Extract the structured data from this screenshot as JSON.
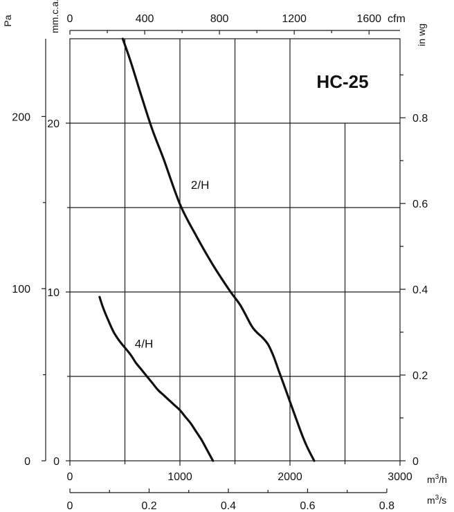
{
  "chart_data": {
    "type": "line",
    "title": "HC-25",
    "colors": {
      "curve": "#111111",
      "grid": "#1a1a1a",
      "background": "#ffffff"
    },
    "grid": true,
    "x_axes": {
      "bottom": {
        "unit": "m³/h",
        "range": [
          0,
          3000
        ],
        "ticks": [
          0,
          1000,
          2000,
          3000
        ],
        "labels": [
          "0",
          "1000",
          "2000",
          "3000"
        ]
      },
      "bottom2": {
        "unit": "m³/s",
        "range": [
          0,
          0.8333
        ],
        "ticks": [
          0,
          0.2,
          0.4,
          0.6,
          0.8
        ],
        "labels": [
          "0",
          "0.2",
          "0.4",
          "0.6",
          "0.8"
        ]
      },
      "top": {
        "unit": "cfm",
        "range": [
          0,
          1765.7
        ],
        "ticks": [
          0,
          400,
          800,
          1200,
          1600
        ],
        "labels": [
          "0",
          "400",
          "800",
          "1200",
          "1600"
        ]
      }
    },
    "y_axes": {
      "outer_left": {
        "unit": "Pa",
        "range": [
          0,
          245
        ],
        "ticks": [
          0,
          100,
          200
        ],
        "labels": [
          "0",
          "100",
          "200"
        ]
      },
      "inner_left": {
        "unit": "mm.c.a.",
        "range": [
          0,
          25
        ],
        "ticks": [
          0,
          10,
          20
        ],
        "labels": [
          "0",
          "10",
          "20"
        ]
      },
      "right": {
        "unit": "in wg",
        "range": [
          0,
          0.984
        ],
        "ticks": [
          0,
          0.2,
          0.4,
          0.6,
          0.8
        ],
        "labels": [
          "0",
          "0.2",
          "0.4",
          "0.6",
          "0.8"
        ]
      }
    },
    "x_unit": "m³/h",
    "y_unit": "mm.c.a.",
    "series": [
      {
        "name": "2/H",
        "x": [
          480,
          550,
          650,
          750,
          850,
          1000,
          1150,
          1300,
          1450,
          1550,
          1650,
          1700,
          1750,
          1800,
          1850,
          1900,
          1950,
          2000,
          2050,
          2100,
          2150,
          2220
        ],
        "y": [
          25.0,
          23.7,
          21.6,
          19.6,
          17.9,
          15.2,
          13.3,
          11.6,
          10.1,
          9.2,
          8.0,
          7.6,
          7.3,
          6.9,
          6.2,
          5.3,
          4.4,
          3.5,
          2.6,
          1.7,
          0.9,
          0.0
        ]
      },
      {
        "name": "4/H",
        "x": [
          270,
          300,
          350,
          400,
          450,
          500,
          550,
          600,
          650,
          700,
          750,
          800,
          850,
          900,
          950,
          1000,
          1050,
          1100,
          1150,
          1200,
          1250,
          1300
        ],
        "y": [
          9.7,
          9.1,
          8.3,
          7.6,
          7.1,
          6.7,
          6.3,
          5.8,
          5.4,
          5.0,
          4.6,
          4.2,
          3.9,
          3.6,
          3.3,
          3.0,
          2.6,
          2.2,
          1.7,
          1.2,
          0.6,
          0.0
        ]
      }
    ],
    "curve_labels": [
      {
        "series": "2/H",
        "text": "2/H"
      },
      {
        "series": "4/H",
        "text": "4/H"
      }
    ]
  }
}
